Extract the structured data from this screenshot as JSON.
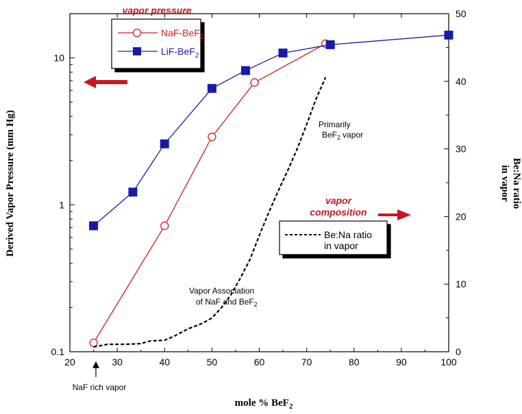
{
  "chart_data": {
    "type": "line",
    "x": {
      "label": "mole % BeF",
      "label_sub": "2",
      "range": [
        20,
        100
      ],
      "ticks": [
        20,
        30,
        40,
        50,
        60,
        70,
        80,
        90,
        100
      ]
    },
    "y_left": {
      "label": "Derived Vapor Pressure (mm Hg)",
      "scale": "log",
      "range": [
        0.1,
        20
      ],
      "ticks": [
        0.1,
        1,
        10
      ],
      "tick_labels": [
        "0.1",
        "1",
        "10"
      ]
    },
    "y_right": {
      "label_line1": "Be:Na ratio",
      "label_line2": "in vapor",
      "range": [
        0,
        50
      ],
      "ticks": [
        0,
        10,
        20,
        30,
        40,
        50
      ]
    },
    "series": [
      {
        "name": "NaF-BeF",
        "name_sub": "2",
        "axis": "left",
        "color": "#d7191c",
        "marker": "open-circle",
        "x": [
          25,
          40,
          50,
          59,
          74
        ],
        "y": [
          0.115,
          0.72,
          2.9,
          6.8,
          12.5
        ]
      },
      {
        "name": "LiF-BeF",
        "name_sub": "2",
        "axis": "left",
        "color": "#1a1aa8",
        "marker": "filled-square",
        "x": [
          25,
          33.3,
          40,
          50,
          57.1,
          65,
          75,
          100
        ],
        "y": [
          0.72,
          1.22,
          2.6,
          6.2,
          8.2,
          10.8,
          12.3,
          14.3
        ]
      },
      {
        "name": "Be:Na ratio in vapor",
        "axis": "right",
        "color": "#000000",
        "dash": "dashed",
        "x": [
          25,
          28,
          32,
          35,
          37,
          40,
          42,
          45,
          48,
          50,
          52,
          54,
          56,
          58,
          60,
          62,
          64,
          66,
          68,
          70,
          72,
          74
        ],
        "y": [
          0.7,
          1.1,
          1.1,
          1.2,
          1.6,
          1.7,
          2.3,
          3.4,
          4.2,
          5.0,
          6.5,
          8.4,
          10.9,
          13.6,
          17.2,
          20.6,
          23.8,
          26.8,
          30.0,
          33.6,
          37.4,
          40.6
        ]
      }
    ],
    "legend_left": {
      "title": "vapor pressure",
      "items": [
        {
          "label": "NaF-BeF",
          "sub": "2"
        },
        {
          "label": "LiF-BeF",
          "sub": "2"
        }
      ]
    },
    "legend_right": {
      "title_line1": "vapor",
      "title_line2": "composition",
      "item_line1": "Be:Na ratio",
      "item_line2": "in vapor"
    },
    "annotations": {
      "primarily_line1": "Primarily",
      "primarily_line2": "BeF",
      "primarily_sub": "2",
      "primarily_line2_tail": "vapor",
      "assoc_line1": "Vapor Association",
      "assoc_line2": "of NaF and BeF",
      "assoc_sub": "2",
      "naf_rich": "NaF rich vapor"
    }
  }
}
